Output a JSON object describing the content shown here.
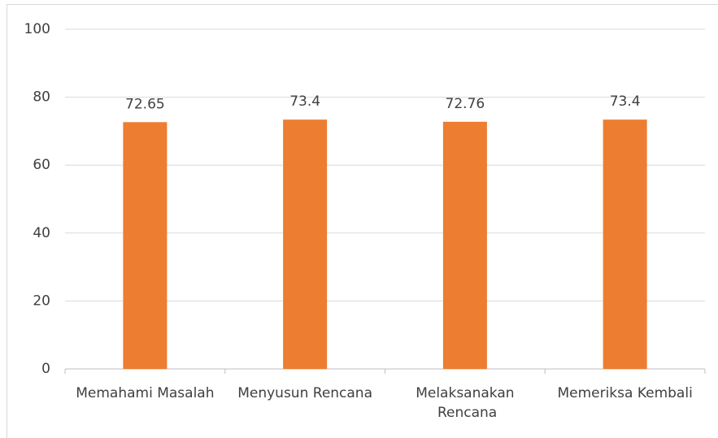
{
  "chart_data": {
    "type": "bar",
    "categories": [
      "Memahami Masalah",
      "Menyusun Rencana",
      "Melaksanakan Rencana",
      "Memeriksa Kembali"
    ],
    "values": [
      72.65,
      73.4,
      72.76,
      73.4
    ],
    "color": "#ed7d31",
    "ylim": [
      0,
      100
    ],
    "yticks": [
      0,
      20,
      40,
      60,
      80,
      100
    ],
    "grid": true
  }
}
